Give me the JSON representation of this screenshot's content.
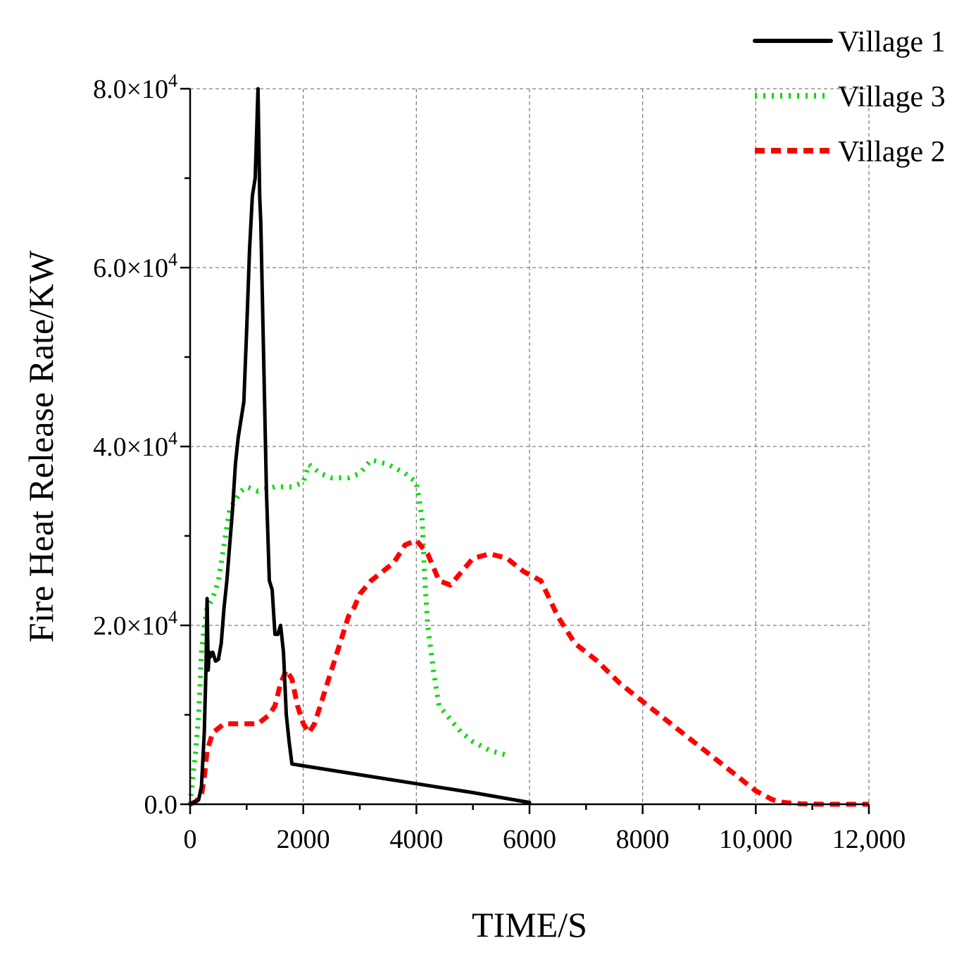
{
  "chart_data": {
    "type": "line",
    "title": "",
    "xlabel": "TIME/S",
    "ylabel": "Fire Heat Release Rate/KW",
    "xlim": [
      0,
      12000
    ],
    "ylim": [
      0,
      80000
    ],
    "grid": true,
    "legend_position": "top-right",
    "x_tick_values": [
      0,
      2000,
      4000,
      6000,
      8000,
      10000,
      12000
    ],
    "x_tick_labels": [
      "0",
      "2000",
      "4000",
      "6000",
      "8000",
      "10,000",
      "12,000"
    ],
    "y_tick_values": [
      0,
      20000,
      40000,
      60000,
      80000
    ],
    "y_tick_labels": [
      {
        "mantissa": "0.0",
        "exponent": ""
      },
      {
        "mantissa": "2.0×10",
        "exponent": "4"
      },
      {
        "mantissa": "4.0×10",
        "exponent": "4"
      },
      {
        "mantissa": "6.0×10",
        "exponent": "4"
      },
      {
        "mantissa": "8.0×10",
        "exponent": "4"
      }
    ],
    "series": [
      {
        "name": "Village 1",
        "color": "#000000",
        "style": "solid",
        "x": [
          0,
          150,
          200,
          250,
          280,
          300,
          320,
          340,
          360,
          400,
          450,
          500,
          550,
          600,
          650,
          700,
          750,
          800,
          850,
          900,
          950,
          1000,
          1050,
          1100,
          1150,
          1200,
          1230,
          1250,
          1300,
          1350,
          1400,
          1450,
          1500,
          1550,
          1600,
          1650,
          1700,
          1750,
          1800,
          1900,
          2000,
          3000,
          4000,
          5000,
          6000
        ],
        "y": [
          0,
          500,
          2000,
          8000,
          15000,
          23000,
          15000,
          17000,
          16500,
          17000,
          16000,
          16200,
          18000,
          22000,
          25000,
          29000,
          33000,
          38000,
          41000,
          43000,
          45000,
          53000,
          62000,
          68000,
          70000,
          80000,
          68000,
          65000,
          50000,
          35000,
          25000,
          24000,
          19000,
          19000,
          20000,
          17000,
          10000,
          7000,
          4500,
          4400,
          4300,
          3300,
          2300,
          1300,
          200
        ]
      },
      {
        "name": "Village 3",
        "color": "#00dd00",
        "style": "dotted",
        "x": [
          0,
          50,
          100,
          150,
          200,
          250,
          300,
          350,
          400,
          500,
          600,
          700,
          800,
          900,
          1000,
          1200,
          1500,
          1800,
          2000,
          2100,
          2300,
          2500,
          2800,
          3000,
          3200,
          3500,
          3800,
          4000,
          4100,
          4150,
          4200,
          4300,
          4400,
          4600,
          4800,
          5000,
          5300,
          5600
        ],
        "y": [
          0,
          3000,
          6000,
          10000,
          17000,
          20000,
          22000,
          22500,
          23000,
          25000,
          29000,
          33000,
          34000,
          35000,
          35500,
          35000,
          35500,
          35500,
          36000,
          38000,
          37000,
          36500,
          36500,
          37000,
          38500,
          38000,
          37000,
          36000,
          32000,
          25000,
          20000,
          15000,
          11000,
          9500,
          8000,
          7000,
          6000,
          5500
        ]
      },
      {
        "name": "Village 2",
        "color": "#ff0000",
        "style": "dashed",
        "x": [
          0,
          100,
          200,
          250,
          300,
          400,
          600,
          800,
          1000,
          1200,
          1400,
          1500,
          1600,
          1700,
          1800,
          1900,
          2000,
          2100,
          2200,
          2300,
          2400,
          2500,
          2600,
          2700,
          2800,
          2900,
          3000,
          3200,
          3400,
          3600,
          3800,
          4000,
          4200,
          4400,
          4600,
          4800,
          5000,
          5300,
          5600,
          5900,
          6200,
          6500,
          6800,
          7200,
          7600,
          8000,
          8400,
          8800,
          9200,
          9600,
          10000,
          10300,
          10500,
          10800,
          11200,
          11600,
          12000
        ],
        "y": [
          0,
          300,
          1000,
          3000,
          6000,
          8000,
          9000,
          9000,
          9000,
          9000,
          10000,
          11000,
          13500,
          15000,
          14000,
          11000,
          9000,
          8000,
          9000,
          11000,
          13000,
          15000,
          17000,
          19000,
          21000,
          22000,
          23500,
          25000,
          26000,
          27000,
          29000,
          29500,
          28000,
          25000,
          24500,
          26000,
          27500,
          28000,
          27500,
          26000,
          25000,
          21000,
          18000,
          16000,
          13500,
          11500,
          9500,
          7500,
          5500,
          3500,
          1500,
          500,
          200,
          50,
          0,
          0,
          0
        ]
      }
    ]
  }
}
